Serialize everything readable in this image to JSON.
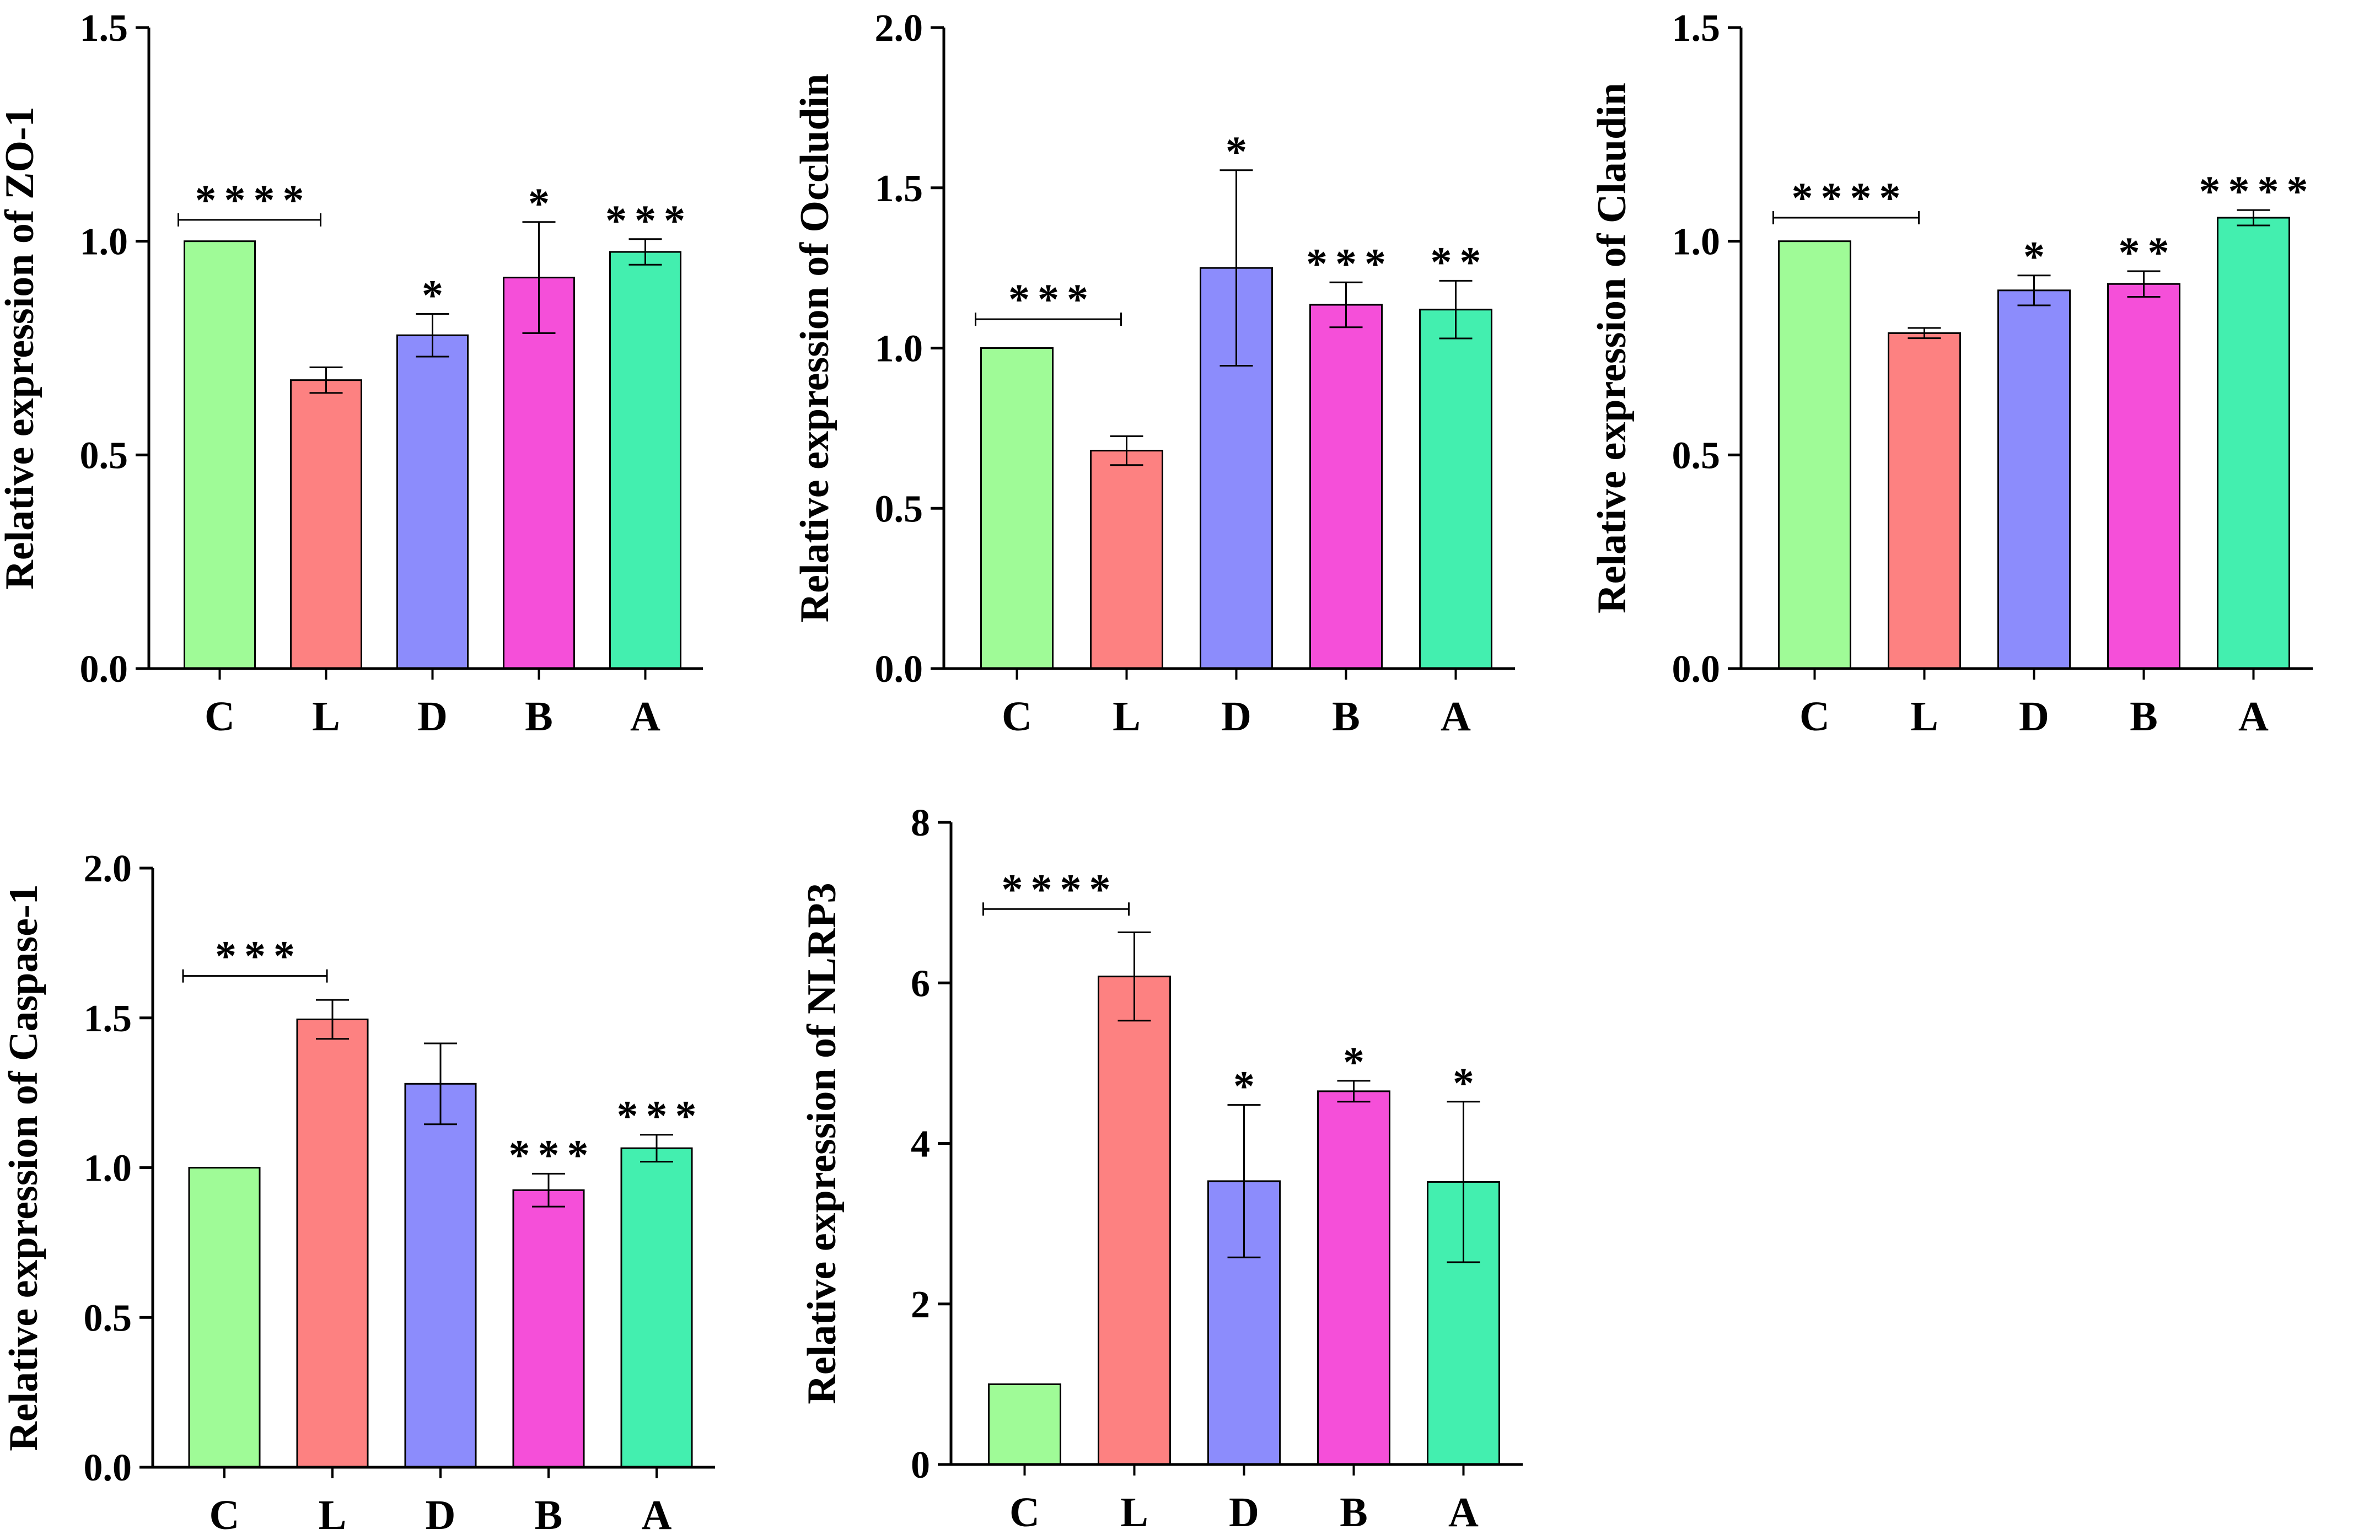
{
  "colors": {
    "C": "#9ffb97",
    "L": "#fd8181",
    "D": "#8c8cfc",
    "B": "#f54fd9",
    "A": "#43efaf",
    "axis": "#000000"
  },
  "chart_data": [
    {
      "type": "bar",
      "ylabel": "Relative expression of ZO-1",
      "categories": [
        "C",
        "L",
        "D",
        "B",
        "A"
      ],
      "values": [
        1.0,
        0.675,
        0.78,
        0.915,
        0.975
      ],
      "errors": [
        0,
        0.03,
        0.05,
        0.13,
        0.03
      ],
      "ylim": [
        0,
        1.5
      ],
      "yticks": [
        "0.0",
        "0.5",
        "1.0",
        "1.5"
      ],
      "ytick_values": [
        0,
        0.5,
        1.0,
        1.5
      ],
      "significance": [
        "",
        "",
        "*",
        "*",
        "***"
      ],
      "comparison_bracket": {
        "from": "C",
        "to": "L",
        "label": "****",
        "y": 1.05
      }
    },
    {
      "type": "bar",
      "ylabel": "Relative expression of Occludin",
      "categories": [
        "C",
        "L",
        "D",
        "B",
        "A"
      ],
      "values": [
        1.0,
        0.68,
        1.25,
        1.135,
        1.12
      ],
      "errors": [
        0,
        0.045,
        0.305,
        0.07,
        0.09
      ],
      "ylim": [
        0,
        2.0
      ],
      "yticks": [
        "0.0",
        "0.5",
        "1.0",
        "1.5",
        "2.0"
      ],
      "ytick_values": [
        0,
        0.5,
        1.0,
        1.5,
        2.0
      ],
      "significance": [
        "",
        "",
        "*",
        "***",
        "**"
      ],
      "comparison_bracket": {
        "from": "C",
        "to": "L",
        "label": "***",
        "y": 1.09
      }
    },
    {
      "type": "bar",
      "ylabel": "Relative expression of Claudin",
      "categories": [
        "C",
        "L",
        "D",
        "B",
        "A"
      ],
      "values": [
        1.0,
        0.785,
        0.885,
        0.9,
        1.055
      ],
      "errors": [
        0,
        0.012,
        0.035,
        0.03,
        0.018
      ],
      "ylim": [
        0,
        1.5
      ],
      "yticks": [
        "0.0",
        "0.5",
        "1.0",
        "1.5"
      ],
      "ytick_values": [
        0,
        0.5,
        1.0,
        1.5
      ],
      "significance": [
        "",
        "",
        "*",
        "**",
        "****"
      ],
      "comparison_bracket": {
        "from": "C",
        "to": "L",
        "label": "****",
        "y": 1.055
      }
    },
    {
      "type": "bar",
      "ylabel": "Relative expression of Caspase-1",
      "categories": [
        "C",
        "L",
        "D",
        "B",
        "A"
      ],
      "values": [
        1.0,
        1.495,
        1.28,
        0.925,
        1.065
      ],
      "errors": [
        0,
        0.065,
        0.135,
        0.055,
        0.045
      ],
      "ylim": [
        0,
        2.0
      ],
      "yticks": [
        "0.0",
        "0.5",
        "1.0",
        "1.5",
        "2.0"
      ],
      "ytick_values": [
        0,
        0.5,
        1.0,
        1.5,
        2.0
      ],
      "significance": [
        "",
        "",
        "",
        "***",
        "***"
      ],
      "comparison_bracket": {
        "from": "C",
        "to": "L",
        "label": "***",
        "y": 1.64
      }
    },
    {
      "type": "bar",
      "ylabel": "Relative expression of NLRP3",
      "categories": [
        "C",
        "L",
        "D",
        "B",
        "A"
      ],
      "values": [
        1.0,
        6.08,
        3.53,
        4.65,
        3.52
      ],
      "errors": [
        0,
        0.55,
        0.95,
        0.13,
        1.0
      ],
      "ylim": [
        0,
        8
      ],
      "yticks": [
        "0",
        "2",
        "4",
        "6",
        "8"
      ],
      "ytick_values": [
        0,
        2,
        4,
        6,
        8
      ],
      "significance": [
        "",
        "",
        "*",
        "*",
        "*"
      ],
      "comparison_bracket": {
        "from": "C",
        "to": "L",
        "label": "****",
        "y": 6.92
      }
    }
  ]
}
